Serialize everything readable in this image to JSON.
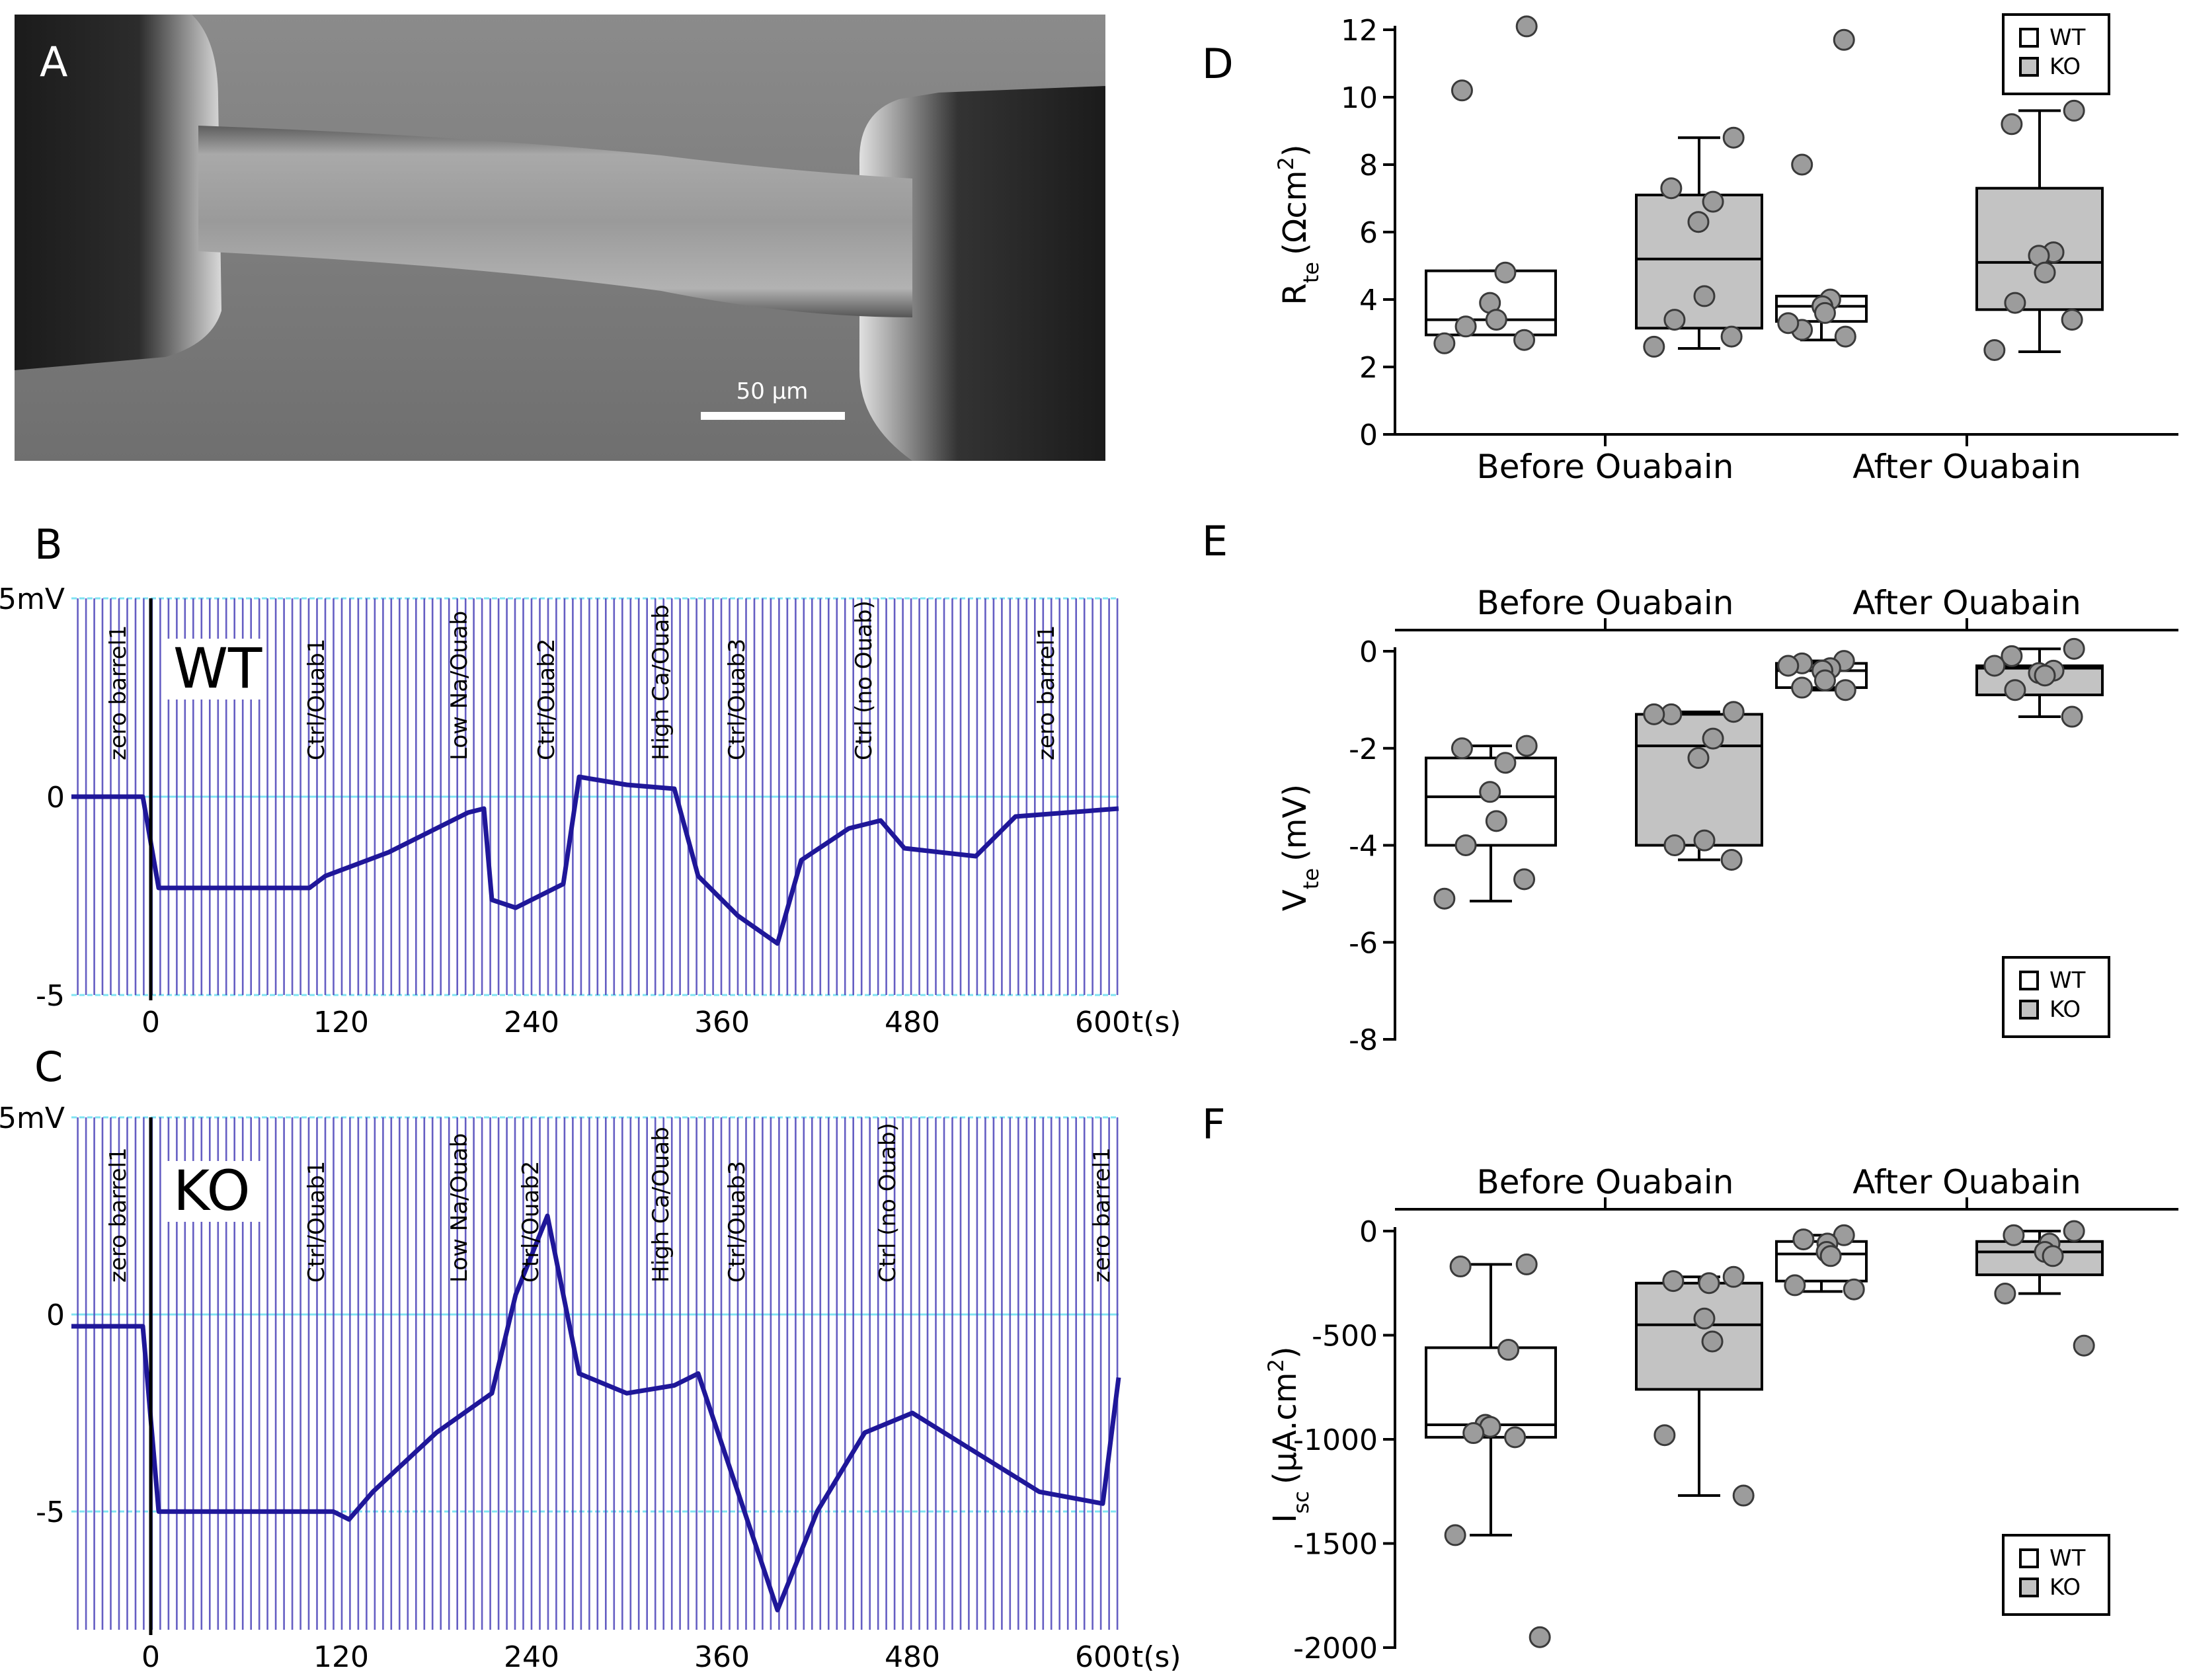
{
  "panel_A": {
    "label": "A",
    "scale_bar_text": "50 µm"
  },
  "chart_data": [
    {
      "id": "B",
      "type": "line",
      "label": "B",
      "genotype": "WT",
      "yticks": [
        "5mV",
        "0",
        "-5"
      ],
      "xticks": [
        "0",
        "120",
        "240",
        "360",
        "480",
        "600"
      ],
      "xunit": "t(s)",
      "xlim": [
        -50,
        610
      ],
      "ylim": [
        -5,
        5
      ],
      "annotations": [
        {
          "text": "zero barrel1",
          "t": -20
        },
        {
          "text": "Ctrl/Ouab1",
          "t": 105
        },
        {
          "text": "Low Na/Ouab",
          "t": 195
        },
        {
          "text": "Ctrl/Ouab2",
          "t": 250
        },
        {
          "text": "High Ca/Ouab",
          "t": 322
        },
        {
          "text": "Ctrl/Ouab3",
          "t": 370
        },
        {
          "text": "Ctrl (no Ouab)",
          "t": 450
        },
        {
          "text": "zero barrel1",
          "t": 565
        }
      ],
      "trace": [
        [
          -50,
          0.0
        ],
        [
          -5,
          0.0
        ],
        [
          5,
          -2.3
        ],
        [
          100,
          -2.3
        ],
        [
          110,
          -2.0
        ],
        [
          150,
          -1.4
        ],
        [
          200,
          -0.4
        ],
        [
          210,
          -0.3
        ],
        [
          215,
          -2.6
        ],
        [
          230,
          -2.8
        ],
        [
          260,
          -2.2
        ],
        [
          270,
          0.5
        ],
        [
          300,
          0.3
        ],
        [
          330,
          0.2
        ],
        [
          345,
          -2.0
        ],
        [
          370,
          -3.0
        ],
        [
          395,
          -3.7
        ],
        [
          410,
          -1.6
        ],
        [
          440,
          -0.8
        ],
        [
          460,
          -0.6
        ],
        [
          475,
          -1.3
        ],
        [
          520,
          -1.5
        ],
        [
          545,
          -0.5
        ],
        [
          610,
          -0.3
        ]
      ]
    },
    {
      "id": "C",
      "type": "line",
      "label": "C",
      "genotype": "KO",
      "yticks": [
        "5mV",
        "0",
        "-5"
      ],
      "xticks": [
        "0",
        "120",
        "240",
        "360",
        "480",
        "600"
      ],
      "xunit": "t(s)",
      "xlim": [
        -50,
        610
      ],
      "ylim": [
        -8,
        5
      ],
      "annotations": [
        {
          "text": "zero barrel1",
          "t": -20
        },
        {
          "text": "Ctrl/Ouab1",
          "t": 105
        },
        {
          "text": "Low Na/Ouab",
          "t": 195
        },
        {
          "text": "Ctrl/Ouab2",
          "t": 240
        },
        {
          "text": "High Ca/Ouab",
          "t": 322
        },
        {
          "text": "Ctrl/Ouab3",
          "t": 370
        },
        {
          "text": "Ctrl (no Ouab)",
          "t": 465
        },
        {
          "text": "zero barrel1",
          "t": 600
        }
      ],
      "trace": [
        [
          -50,
          -0.3
        ],
        [
          -5,
          -0.3
        ],
        [
          5,
          -5.0
        ],
        [
          115,
          -5.0
        ],
        [
          125,
          -5.2
        ],
        [
          140,
          -4.5
        ],
        [
          180,
          -3.0
        ],
        [
          215,
          -2.0
        ],
        [
          230,
          0.5
        ],
        [
          250,
          2.5
        ],
        [
          270,
          -1.5
        ],
        [
          300,
          -2.0
        ],
        [
          330,
          -1.8
        ],
        [
          345,
          -1.5
        ],
        [
          370,
          -4.5
        ],
        [
          395,
          -7.5
        ],
        [
          420,
          -5.0
        ],
        [
          450,
          -3.0
        ],
        [
          480,
          -2.5
        ],
        [
          520,
          -3.5
        ],
        [
          560,
          -4.5
        ],
        [
          600,
          -4.8
        ],
        [
          610,
          -1.6
        ]
      ]
    },
    {
      "id": "D",
      "type": "box",
      "label": "D",
      "ylabel": "R",
      "ylabel_sub": "te",
      "ylabel_unit": "(Ωcm",
      "ylabel_sup": "2",
      "ylabel_end": ")",
      "ylim": [
        0,
        12
      ],
      "yticks": [
        "0",
        "2",
        "4",
        "6",
        "8",
        "10",
        "12"
      ],
      "groups": [
        "Before Ouabain",
        "After Ouabain"
      ],
      "legend": [
        "WT",
        "KO"
      ],
      "boxes": [
        {
          "group": 0,
          "series": "WT",
          "q1": 2.95,
          "median": 3.4,
          "q3": 4.85,
          "whisk_lo": 2.95,
          "whisk_hi": 4.85,
          "points": [
            12.1,
            10.2,
            4.8,
            3.9,
            3.4,
            3.2,
            2.8,
            2.7
          ]
        },
        {
          "group": 0,
          "series": "KO",
          "q1": 3.15,
          "median": 5.2,
          "q3": 7.1,
          "whisk_lo": 2.55,
          "whisk_hi": 8.8,
          "points": [
            8.8,
            7.3,
            6.9,
            6.3,
            4.1,
            3.4,
            2.9,
            2.6
          ]
        },
        {
          "group": 1,
          "series": "WT",
          "q1": 3.35,
          "median": 3.8,
          "q3": 4.1,
          "whisk_lo": 2.8,
          "whisk_hi": 4.1,
          "points": [
            11.7,
            8.0,
            4.0,
            3.8,
            3.6,
            3.1,
            2.9,
            3.3
          ]
        },
        {
          "group": 1,
          "series": "KO",
          "q1": 3.7,
          "median": 5.1,
          "q3": 7.3,
          "whisk_lo": 2.45,
          "whisk_hi": 9.6,
          "points": [
            9.6,
            9.2,
            5.4,
            5.3,
            4.8,
            3.9,
            3.4,
            2.5
          ]
        }
      ]
    },
    {
      "id": "E",
      "type": "box",
      "label": "E",
      "ylabel": "V",
      "ylabel_sub": "te",
      "ylabel_unit": "(mV)",
      "ylabel_sup": "",
      "ylabel_end": "",
      "ylim": [
        -8,
        0
      ],
      "yticks": [
        "0",
        "-2",
        "-4",
        "-6",
        "-8"
      ],
      "groups": [
        "Before Ouabain",
        "After Ouabain"
      ],
      "legend": [
        "WT",
        "KO"
      ],
      "boxes": [
        {
          "group": 0,
          "series": "WT",
          "q1": -4.0,
          "median": -3.0,
          "q3": -2.2,
          "whisk_lo": -5.15,
          "whisk_hi": -1.95,
          "points": [
            -1.95,
            -2.0,
            -2.3,
            -2.9,
            -3.5,
            -4.0,
            -4.7,
            -5.1
          ]
        },
        {
          "group": 0,
          "series": "KO",
          "q1": -4.0,
          "median": -1.95,
          "q3": -1.3,
          "whisk_lo": -4.3,
          "whisk_hi": -1.25,
          "points": [
            -1.25,
            -1.3,
            -1.8,
            -2.2,
            -3.9,
            -4.0,
            -4.3,
            -1.3
          ]
        },
        {
          "group": 1,
          "series": "WT",
          "q1": -0.75,
          "median": -0.4,
          "q3": -0.25,
          "whisk_lo": -0.8,
          "whisk_hi": -0.2,
          "points": [
            -0.2,
            -0.25,
            -0.35,
            -0.4,
            -0.6,
            -0.75,
            -0.8,
            -0.3
          ]
        },
        {
          "group": 1,
          "series": "KO",
          "q1": -0.9,
          "median": -0.35,
          "q3": -0.3,
          "whisk_lo": -1.35,
          "whisk_hi": 0.05,
          "points": [
            0.05,
            -0.1,
            -0.4,
            -0.45,
            -0.5,
            -0.8,
            -1.35,
            -0.3
          ]
        }
      ]
    },
    {
      "id": "F",
      "type": "box",
      "label": "F",
      "ylabel": "I",
      "ylabel_sub": "sc",
      "ylabel_unit": "(µA.cm",
      "ylabel_sup": "2",
      "ylabel_end": ")",
      "ylim": [
        -2000,
        0
      ],
      "yticks": [
        "0",
        "-500",
        "-1000",
        "-1500",
        "-2000"
      ],
      "groups": [
        "Before Ouabain",
        "After Ouabain"
      ],
      "legend": [
        "WT",
        "KO"
      ],
      "boxes": [
        {
          "group": 0,
          "series": "WT",
          "q1": -990,
          "median": -930,
          "q3": -560,
          "whisk_lo": -1460,
          "whisk_hi": -160,
          "points": [
            -160,
            -170,
            -570,
            -930,
            -940,
            -970,
            -990,
            -1460,
            -1950
          ]
        },
        {
          "group": 0,
          "series": "KO",
          "q1": -760,
          "median": -450,
          "q3": -250,
          "whisk_lo": -1270,
          "whisk_hi": -220,
          "points": [
            -220,
            -240,
            -250,
            -420,
            -530,
            -980,
            -1270
          ]
        },
        {
          "group": 1,
          "series": "WT",
          "q1": -240,
          "median": -110,
          "q3": -50,
          "whisk_lo": -290,
          "whisk_hi": -20,
          "points": [
            -20,
            -40,
            -60,
            -100,
            -120,
            -260,
            -280
          ]
        },
        {
          "group": 1,
          "series": "KO",
          "q1": -210,
          "median": -100,
          "q3": -50,
          "whisk_lo": -300,
          "whisk_hi": 0,
          "points": [
            0,
            -20,
            -60,
            -100,
            -120,
            -300,
            -550
          ]
        }
      ]
    }
  ]
}
